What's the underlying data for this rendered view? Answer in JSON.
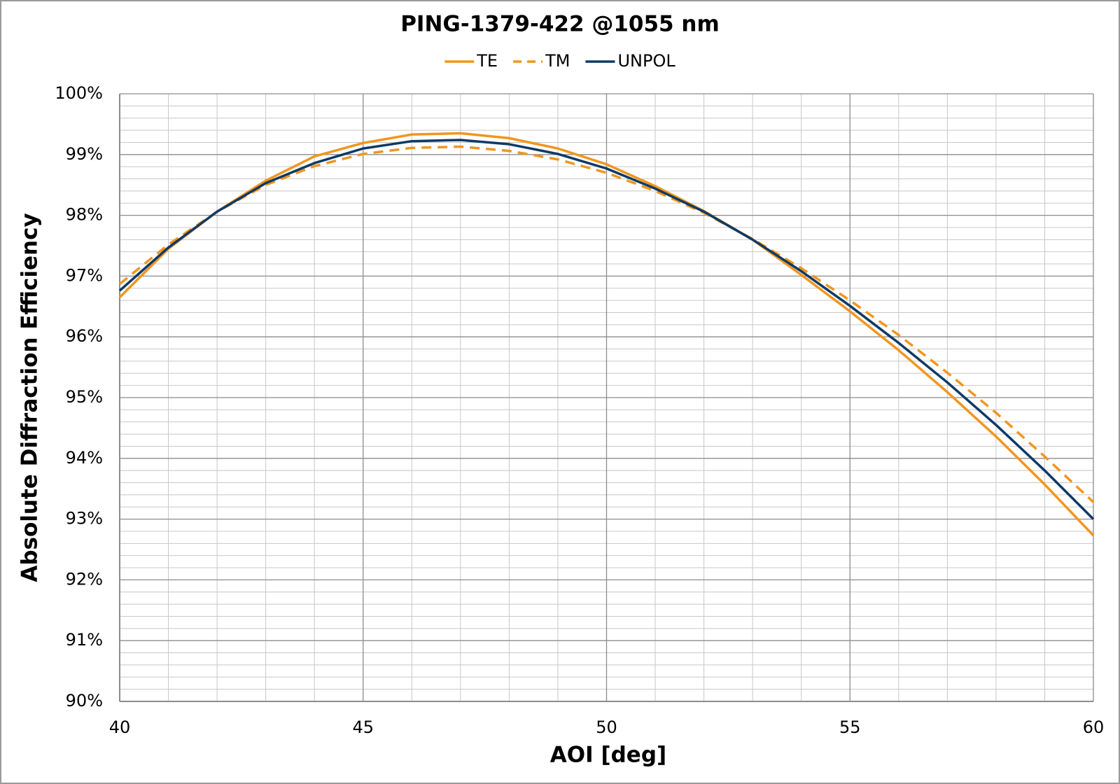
{
  "chart_data": {
    "type": "line",
    "title": "PING-1379-422 @1055 nm",
    "x_label": "AOI [deg]",
    "y_label": "Absolute Diffraction Efficiency",
    "x": [
      40,
      41,
      42,
      43,
      44,
      45,
      46,
      47,
      48,
      49,
      50,
      51,
      52,
      53,
      54,
      55,
      56,
      57,
      58,
      59,
      60
    ],
    "series": [
      {
        "name": "TE",
        "color": "#f0961e",
        "dashed": false,
        "values": [
          96.65,
          97.45,
          98.06,
          98.57,
          98.97,
          99.19,
          99.33,
          99.35,
          99.27,
          99.1,
          98.84,
          98.48,
          98.07,
          97.6,
          97.02,
          96.42,
          95.78,
          95.09,
          94.36,
          93.57,
          92.73
        ]
      },
      {
        "name": "TM",
        "color": "#f0961e",
        "dashed": true,
        "values": [
          96.87,
          97.52,
          98.06,
          98.5,
          98.81,
          99.01,
          99.11,
          99.13,
          99.06,
          98.92,
          98.7,
          98.4,
          98.04,
          97.61,
          97.13,
          96.6,
          96.03,
          95.41,
          94.75,
          94.03,
          93.28
        ]
      },
      {
        "name": "UNPOL",
        "color": "#0e3a66",
        "dashed": false,
        "values": [
          96.76,
          97.47,
          98.06,
          98.53,
          98.86,
          99.1,
          99.22,
          99.24,
          99.17,
          99.01,
          98.77,
          98.44,
          98.06,
          97.6,
          97.08,
          96.51,
          95.9,
          95.25,
          94.55,
          93.8,
          93.0
        ]
      }
    ],
    "xlim": [
      40,
      60
    ],
    "ylim": [
      90,
      100
    ],
    "xticks": [
      40,
      45,
      50,
      55,
      60
    ],
    "yticks": [
      {
        "value": 90,
        "label": "90%"
      },
      {
        "value": 91,
        "label": "91%"
      },
      {
        "value": 92,
        "label": "92%"
      },
      {
        "value": 93,
        "label": "93%"
      },
      {
        "value": 94,
        "label": "94%"
      },
      {
        "value": 95,
        "label": "95%"
      },
      {
        "value": 96,
        "label": "96%"
      },
      {
        "value": 97,
        "label": "97%"
      },
      {
        "value": 98,
        "label": "98%"
      },
      {
        "value": 99,
        "label": "99%"
      },
      {
        "value": 100,
        "label": "100%"
      }
    ],
    "minor_xticks": [
      41,
      42,
      43,
      44,
      46,
      47,
      48,
      49,
      51,
      52,
      53,
      54,
      56,
      57,
      58,
      59
    ],
    "minor_yticks": [
      90.2,
      90.4,
      90.6,
      90.8,
      91.2,
      91.4,
      91.6,
      91.8,
      92.2,
      92.4,
      92.6,
      92.8,
      93.2,
      93.4,
      93.6,
      93.8,
      94.2,
      94.4,
      94.6,
      94.8,
      95.2,
      95.4,
      95.6,
      95.8,
      96.2,
      96.4,
      96.6,
      96.8,
      97.2,
      97.4,
      97.6,
      97.8,
      98.2,
      98.4,
      98.6,
      98.8,
      99.2,
      99.4,
      99.6,
      99.8
    ],
    "grid": true,
    "legend": "top"
  }
}
